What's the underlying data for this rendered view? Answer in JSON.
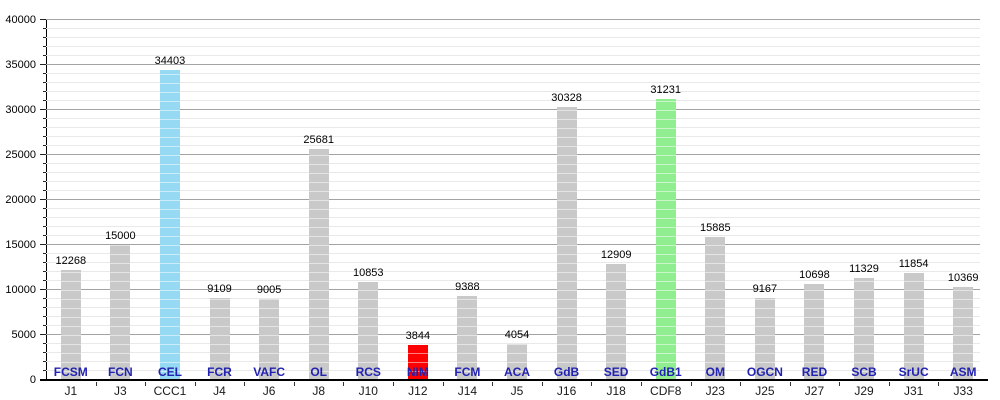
{
  "chart_data": {
    "type": "bar",
    "title": "",
    "xlabel": "",
    "ylabel": "",
    "ylim": [
      0,
      40000
    ],
    "y_major_step": 5000,
    "y_minor_step": 1000,
    "grid": true,
    "legend": false,
    "categories": [
      "J1",
      "J3",
      "CCC1",
      "J4",
      "J6",
      "J8",
      "J10",
      "J12",
      "J14",
      "J5",
      "J16",
      "J18",
      "CDF8",
      "J23",
      "J25",
      "J27",
      "J29",
      "J31",
      "J33"
    ],
    "bars": [
      {
        "category": "J1",
        "team": "FCSM",
        "value": 12268,
        "color": "default"
      },
      {
        "category": "J3",
        "team": "FCN",
        "value": 15000,
        "color": "default"
      },
      {
        "category": "CCC1",
        "team": "CEL",
        "value": 34403,
        "color": "blue"
      },
      {
        "category": "J4",
        "team": "FCR",
        "value": 9109,
        "color": "default"
      },
      {
        "category": "J6",
        "team": "VAFC",
        "value": 9005,
        "color": "default"
      },
      {
        "category": "J8",
        "team": "OL",
        "value": 25681,
        "color": "default"
      },
      {
        "category": "J10",
        "team": "RCS",
        "value": 10853,
        "color": "default"
      },
      {
        "category": "J12",
        "team": "NIM",
        "value": 3844,
        "color": "red"
      },
      {
        "category": "J14",
        "team": "FCM",
        "value": 9388,
        "color": "default"
      },
      {
        "category": "J5",
        "team": "ACA",
        "value": 4054,
        "color": "default"
      },
      {
        "category": "J16",
        "team": "GdB",
        "value": 30328,
        "color": "default"
      },
      {
        "category": "J18",
        "team": "SED",
        "value": 12909,
        "color": "default"
      },
      {
        "category": "CDF8",
        "team": "GdB1",
        "value": 31231,
        "color": "green"
      },
      {
        "category": "J23",
        "team": "OM",
        "value": 15885,
        "color": "default"
      },
      {
        "category": "J25",
        "team": "OGCN",
        "value": 9167,
        "color": "default"
      },
      {
        "category": "J27",
        "team": "RED",
        "value": 10698,
        "color": "default"
      },
      {
        "category": "J29",
        "team": "SCB",
        "value": 11329,
        "color": "default"
      },
      {
        "category": "J31",
        "team": "SrUC",
        "value": 11854,
        "color": "default"
      },
      {
        "category": "J33",
        "team": "ASM",
        "value": 10369,
        "color": "default"
      }
    ],
    "colors": {
      "default": "#C9C9C9",
      "blue": "#96D9F2",
      "green": "#90EE90",
      "red": "#FF0000",
      "team_label": "#2222B2",
      "value_label": "#000000",
      "axis": "#000000",
      "grid_major": "#A3A3A3",
      "grid_minor": "#E9E9E9"
    }
  }
}
